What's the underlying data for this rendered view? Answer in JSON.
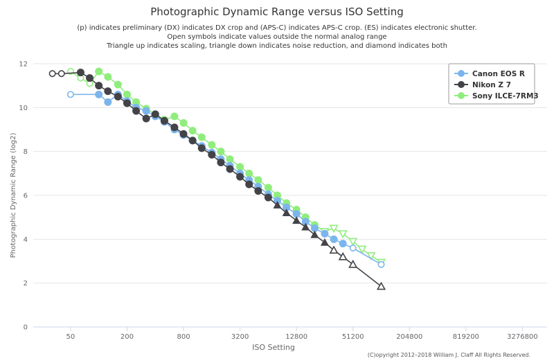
{
  "chart_data": {
    "type": "line",
    "title": "Photographic Dynamic Range versus ISO Setting",
    "subtitle": [
      "(p) indicates preliminary (DX) indicates DX crop and (APS-C) indicates APS-C crop. (ES) indicates electronic shutter.",
      "Open symbols indicate values outside the normal analog range",
      "Triangle up indicates scaling, triangle down indicates noise reduction, and diamond indicates both"
    ],
    "xlabel": "ISO Setting",
    "ylabel": "Photographic Dynamic Range (log2)",
    "x_scale": "log2",
    "x_ticks": [
      50,
      200,
      800,
      3200,
      12800,
      51200,
      204800,
      819200,
      3276800
    ],
    "xlim": [
      20,
      6000000
    ],
    "ylim": [
      0,
      12
    ],
    "y_ticks": [
      0,
      2,
      4,
      6,
      8,
      10,
      12
    ],
    "grid": true,
    "legend_position": "top-right",
    "credit": "(C)opyright 2012–2018 William J. Claff All Rights Reserved.",
    "series": [
      {
        "name": "Canon EOS R",
        "color": "#7cb5ec",
        "points": [
          {
            "x": 50,
            "y": 10.6,
            "m": "open"
          },
          {
            "x": 100,
            "y": 10.6,
            "m": "filled"
          },
          {
            "x": 125,
            "y": 10.25,
            "m": "filled"
          },
          {
            "x": 160,
            "y": 10.6,
            "m": "filled"
          },
          {
            "x": 200,
            "y": 10.3,
            "m": "filled"
          },
          {
            "x": 250,
            "y": 10.0,
            "m": "filled"
          },
          {
            "x": 320,
            "y": 9.85,
            "m": "filled"
          },
          {
            "x": 400,
            "y": 9.6,
            "m": "filled"
          },
          {
            "x": 500,
            "y": 9.35,
            "m": "filled"
          },
          {
            "x": 640,
            "y": 9.0,
            "m": "filled"
          },
          {
            "x": 800,
            "y": 8.75,
            "m": "filled"
          },
          {
            "x": 1000,
            "y": 8.5,
            "m": "filled"
          },
          {
            "x": 1250,
            "y": 8.25,
            "m": "filled"
          },
          {
            "x": 1600,
            "y": 7.95,
            "m": "filled"
          },
          {
            "x": 2000,
            "y": 7.65,
            "m": "filled"
          },
          {
            "x": 2500,
            "y": 7.35,
            "m": "filled"
          },
          {
            "x": 3200,
            "y": 7.0,
            "m": "filled"
          },
          {
            "x": 4000,
            "y": 6.7,
            "m": "filled"
          },
          {
            "x": 5000,
            "y": 6.4,
            "m": "filled"
          },
          {
            "x": 6400,
            "y": 6.05,
            "m": "filled"
          },
          {
            "x": 8000,
            "y": 5.75,
            "m": "filled"
          },
          {
            "x": 10000,
            "y": 5.45,
            "m": "filled"
          },
          {
            "x": 12800,
            "y": 5.15,
            "m": "filled"
          },
          {
            "x": 16000,
            "y": 4.8,
            "m": "filled"
          },
          {
            "x": 20000,
            "y": 4.5,
            "m": "filled"
          },
          {
            "x": 25600,
            "y": 4.25,
            "m": "filled"
          },
          {
            "x": 32000,
            "y": 4.0,
            "m": "filled"
          },
          {
            "x": 40000,
            "y": 3.8,
            "m": "filled"
          },
          {
            "x": 51200,
            "y": 3.6,
            "m": "open"
          },
          {
            "x": 102400,
            "y": 2.85,
            "m": "open"
          }
        ]
      },
      {
        "name": "Nikon Z 7",
        "color": "#434348",
        "points": [
          {
            "x": 32,
            "y": 11.55,
            "m": "open"
          },
          {
            "x": 40,
            "y": 11.55,
            "m": "open"
          },
          {
            "x": 64,
            "y": 11.6,
            "m": "filled"
          },
          {
            "x": 80,
            "y": 11.35,
            "m": "filled"
          },
          {
            "x": 100,
            "y": 11.0,
            "m": "filled"
          },
          {
            "x": 125,
            "y": 10.75,
            "m": "filled"
          },
          {
            "x": 160,
            "y": 10.5,
            "m": "filled"
          },
          {
            "x": 200,
            "y": 10.2,
            "m": "filled"
          },
          {
            "x": 250,
            "y": 9.85,
            "m": "filled"
          },
          {
            "x": 320,
            "y": 9.5,
            "m": "filled"
          },
          {
            "x": 400,
            "y": 9.7,
            "m": "filled"
          },
          {
            "x": 500,
            "y": 9.4,
            "m": "filled"
          },
          {
            "x": 640,
            "y": 9.1,
            "m": "filled"
          },
          {
            "x": 800,
            "y": 8.8,
            "m": "filled"
          },
          {
            "x": 1000,
            "y": 8.5,
            "m": "filled"
          },
          {
            "x": 1250,
            "y": 8.15,
            "m": "filled"
          },
          {
            "x": 1600,
            "y": 7.85,
            "m": "filled"
          },
          {
            "x": 2000,
            "y": 7.5,
            "m": "filled"
          },
          {
            "x": 2500,
            "y": 7.2,
            "m": "filled"
          },
          {
            "x": 3200,
            "y": 6.85,
            "m": "filled"
          },
          {
            "x": 4000,
            "y": 6.5,
            "m": "filled"
          },
          {
            "x": 5000,
            "y": 6.2,
            "m": "filled"
          },
          {
            "x": 6400,
            "y": 5.9,
            "m": "filled"
          },
          {
            "x": 8000,
            "y": 5.55,
            "m": "tri-up"
          },
          {
            "x": 10000,
            "y": 5.2,
            "m": "tri-up"
          },
          {
            "x": 12800,
            "y": 4.85,
            "m": "tri-up"
          },
          {
            "x": 16000,
            "y": 4.55,
            "m": "tri-up"
          },
          {
            "x": 20000,
            "y": 4.2,
            "m": "tri-up"
          },
          {
            "x": 25600,
            "y": 3.85,
            "m": "tri-up"
          },
          {
            "x": 32000,
            "y": 3.5,
            "m": "tri-up-open"
          },
          {
            "x": 40000,
            "y": 3.2,
            "m": "tri-up-open"
          },
          {
            "x": 51200,
            "y": 2.85,
            "m": "tri-up-open"
          },
          {
            "x": 102400,
            "y": 1.85,
            "m": "tri-up-open"
          }
        ]
      },
      {
        "name": "Sony ILCE-7RM3",
        "color": "#90ed7d",
        "points": [
          {
            "x": 50,
            "y": 11.65,
            "m": "open"
          },
          {
            "x": 64,
            "y": 11.35,
            "m": "open"
          },
          {
            "x": 80,
            "y": 11.1,
            "m": "open"
          },
          {
            "x": 100,
            "y": 11.65,
            "m": "filled"
          },
          {
            "x": 125,
            "y": 11.4,
            "m": "filled"
          },
          {
            "x": 160,
            "y": 11.05,
            "m": "filled"
          },
          {
            "x": 200,
            "y": 10.6,
            "m": "filled"
          },
          {
            "x": 250,
            "y": 10.25,
            "m": "filled"
          },
          {
            "x": 320,
            "y": 9.95,
            "m": "filled"
          },
          {
            "x": 400,
            "y": 9.7,
            "m": "filled"
          },
          {
            "x": 500,
            "y": 9.45,
            "m": "filled"
          },
          {
            "x": 640,
            "y": 9.6,
            "m": "filled"
          },
          {
            "x": 800,
            "y": 9.3,
            "m": "filled"
          },
          {
            "x": 1000,
            "y": 8.95,
            "m": "filled"
          },
          {
            "x": 1250,
            "y": 8.65,
            "m": "filled"
          },
          {
            "x": 1600,
            "y": 8.3,
            "m": "filled"
          },
          {
            "x": 2000,
            "y": 8.0,
            "m": "filled"
          },
          {
            "x": 2500,
            "y": 7.65,
            "m": "filled"
          },
          {
            "x": 3200,
            "y": 7.3,
            "m": "filled"
          },
          {
            "x": 4000,
            "y": 7.0,
            "m": "filled"
          },
          {
            "x": 5000,
            "y": 6.7,
            "m": "filled"
          },
          {
            "x": 6400,
            "y": 6.35,
            "m": "filled"
          },
          {
            "x": 8000,
            "y": 6.0,
            "m": "filled"
          },
          {
            "x": 10000,
            "y": 5.65,
            "m": "filled"
          },
          {
            "x": 12800,
            "y": 5.35,
            "m": "filled"
          },
          {
            "x": 16000,
            "y": 5.0,
            "m": "filled"
          },
          {
            "x": 20000,
            "y": 4.65,
            "m": "filled"
          },
          {
            "x": 25600,
            "y": 4.35,
            "m": "tri-down-open"
          },
          {
            "x": 32000,
            "y": 4.5,
            "m": "tri-down-open"
          },
          {
            "x": 40000,
            "y": 4.25,
            "m": "tri-down-open"
          },
          {
            "x": 51200,
            "y": 3.9,
            "m": "tri-down-open"
          },
          {
            "x": 64000,
            "y": 3.55,
            "m": "tri-down-open"
          },
          {
            "x": 80000,
            "y": 3.25,
            "m": "tri-down-open"
          },
          {
            "x": 102400,
            "y": 2.95,
            "m": "tri-down-open"
          }
        ]
      }
    ]
  }
}
